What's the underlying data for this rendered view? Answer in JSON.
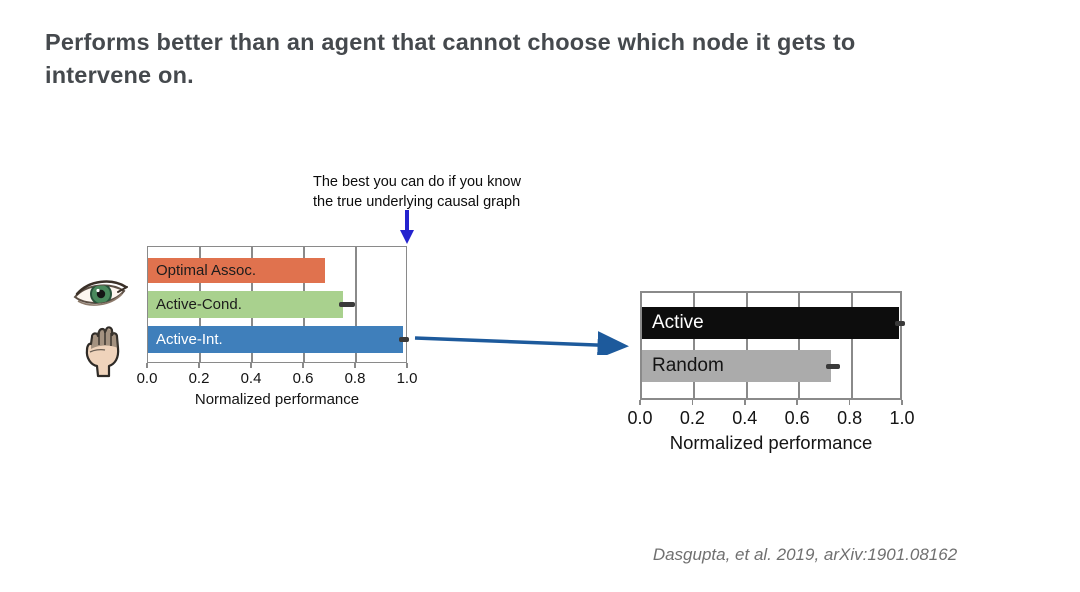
{
  "slide": {
    "title": "Performs better than an agent that cannot choose which node it gets to\nintervene on.",
    "annotation": "The best you can do if you know\nthe true underlying causal graph",
    "citation": "Dasgupta, et al. 2019, arXiv:1901.08162"
  },
  "icons": {
    "eye": "eye-icon",
    "hand": "hand-icon",
    "annotation_arrow": "down-arrow-icon",
    "flow_arrow": "right-arrow-icon"
  },
  "colors": {
    "title_text": "#45494d",
    "chart_frame": "#8a8a8a",
    "error_bar": "#3a3a3a",
    "annotation_arrow_blue": "#2423ce",
    "flow_arrow_blue": "#1d5a9c",
    "citation_gray": "#707070"
  },
  "chart_data": [
    {
      "type": "bar",
      "orientation": "horizontal",
      "title": "",
      "categories": [
        "Optimal Assoc.",
        "Active-Cond.",
        "Active-Int."
      ],
      "values": [
        0.68,
        0.75,
        0.98
      ],
      "errors": [
        null,
        {
          "center": 0.765,
          "halfwidth": 0.03
        },
        {
          "center": 0.985,
          "halfwidth": 0.02
        }
      ],
      "bar_colors": [
        "#e0724e",
        "#a9d18e",
        "#3f7fbb"
      ],
      "label_colors": [
        "#1c1c1c",
        "#1c1c1c",
        "#ffffff"
      ],
      "xlim": [
        0,
        1
      ],
      "xticks": [
        0.0,
        0.2,
        0.4,
        0.6,
        0.8,
        1.0
      ],
      "xtick_labels": [
        "0.0",
        "0.2",
        "0.4",
        "0.6",
        "0.8",
        "1.0"
      ],
      "xlabel": "Normalized performance",
      "grid": true,
      "legend": "none"
    },
    {
      "type": "bar",
      "orientation": "horizontal",
      "title": "",
      "categories": [
        "Active",
        "Random"
      ],
      "values": [
        0.98,
        0.72
      ],
      "errors": [
        {
          "center": 0.985,
          "halfwidth": 0.02
        },
        {
          "center": 0.73,
          "halfwidth": 0.027
        }
      ],
      "bar_colors": [
        "#0d0d0d",
        "#ababab"
      ],
      "label_colors": [
        "#ffffff",
        "#141414"
      ],
      "xlim": [
        0,
        1
      ],
      "xticks": [
        0.0,
        0.2,
        0.4,
        0.6,
        0.8,
        1.0
      ],
      "xtick_labels": [
        "0.0",
        "0.2",
        "0.4",
        "0.6",
        "0.8",
        "1.0"
      ],
      "xlabel": "Normalized performance",
      "grid": true,
      "legend": "none"
    }
  ]
}
